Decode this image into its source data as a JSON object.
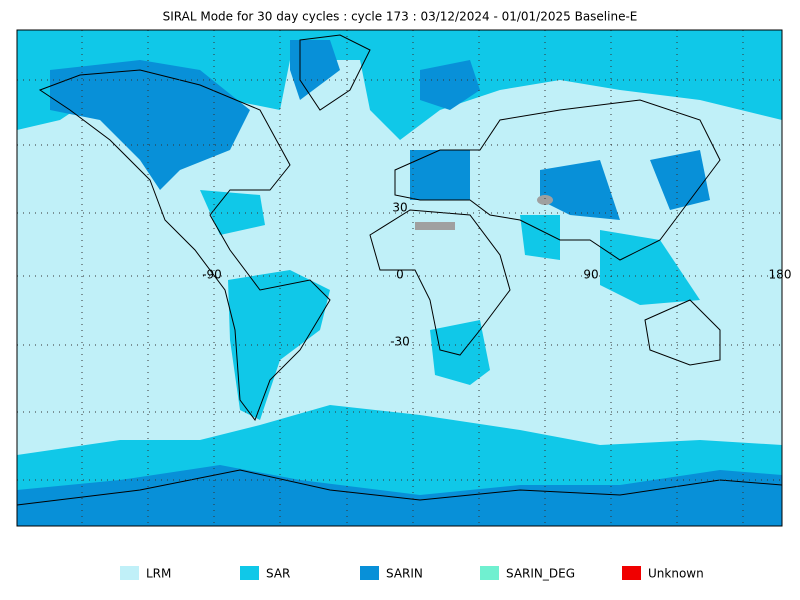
{
  "map": {
    "title": "SIRAL Mode for 30 day cycles : cycle 173 : 03/12/2024 - 01/01/2025 Baseline-E",
    "grid_labels": [
      "-90",
      "0",
      "90",
      "180",
      "30",
      "-30"
    ],
    "legend": [
      {
        "name": "LRM",
        "color": "#c0f0f8"
      },
      {
        "name": "SAR",
        "color": "#10c8e8"
      },
      {
        "name": "SARIN",
        "color": "#0890d8"
      },
      {
        "name": "SARIN_DEG",
        "color": "#70f0d0"
      },
      {
        "name": "Unknown",
        "color": "#f00000"
      }
    ]
  }
}
